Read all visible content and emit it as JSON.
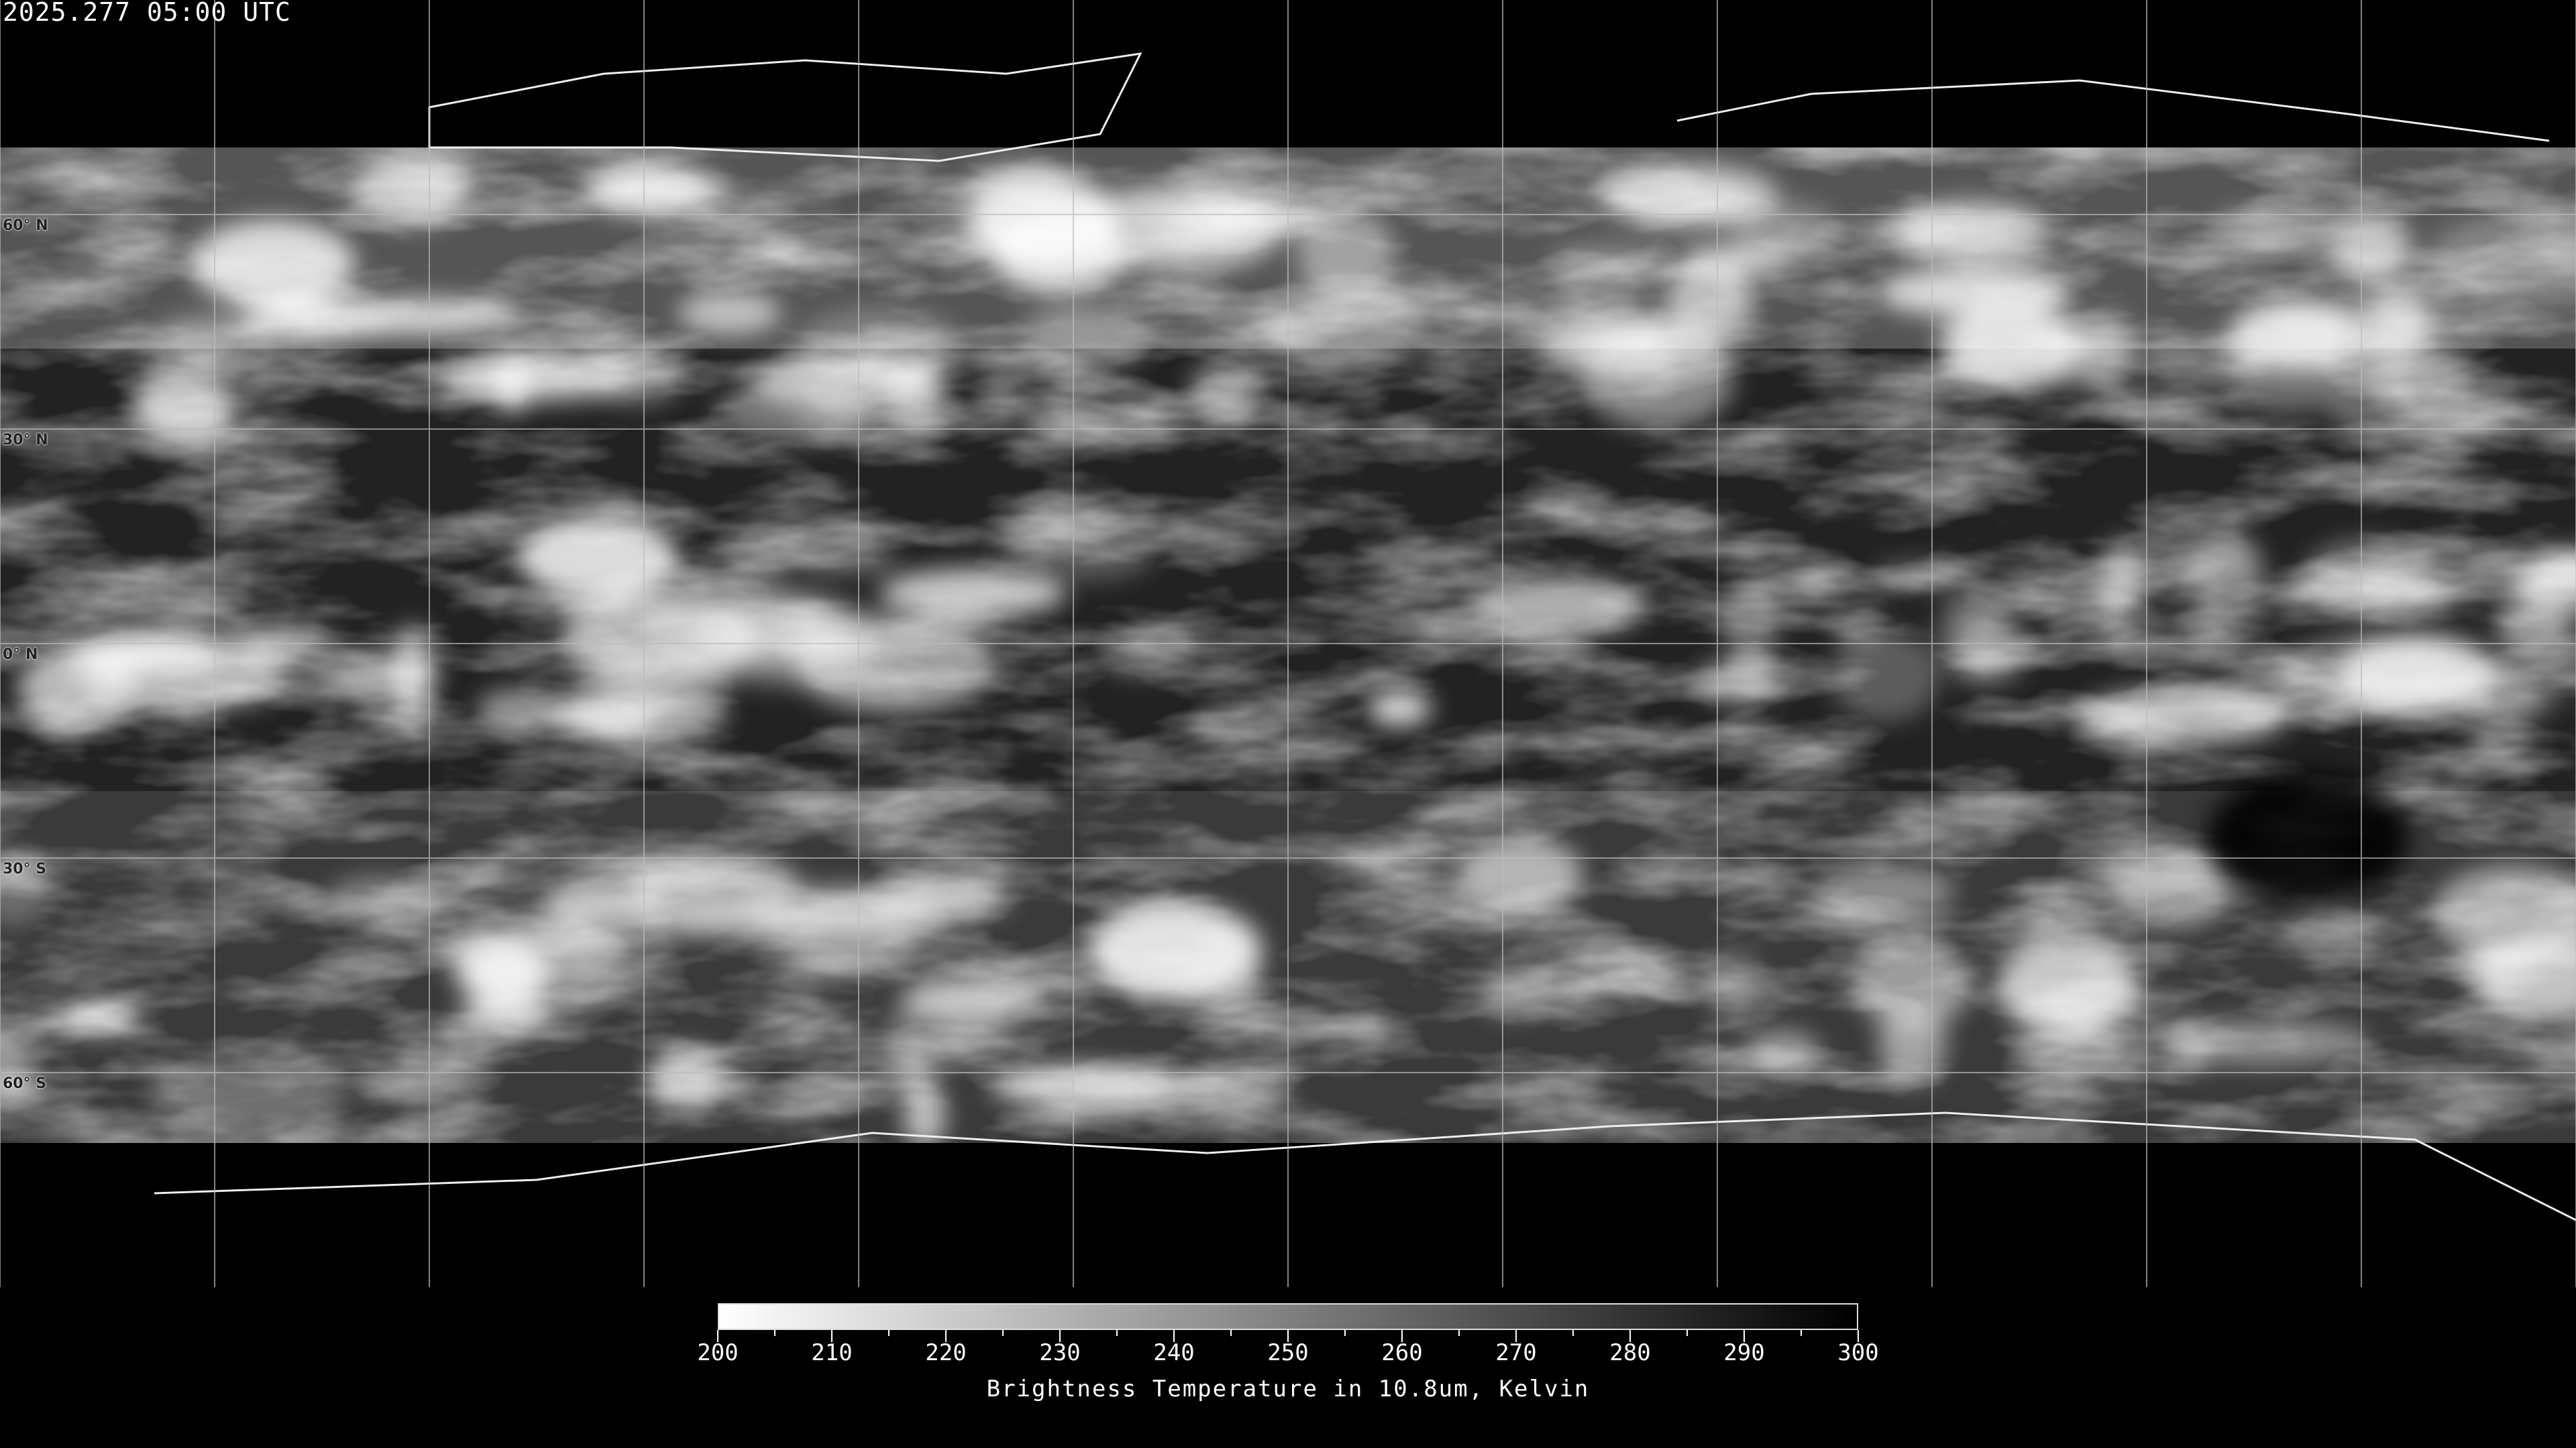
{
  "title": "2025.277 05:00 UTC",
  "map": {
    "projection": "equirectangular",
    "grid": true,
    "lat_labels": [
      "60° N",
      "30° N",
      "0° N",
      "30° S",
      "60° S"
    ],
    "lat_values": [
      60,
      30,
      0,
      -30,
      -60
    ],
    "lon_grid_step_deg": 30
  },
  "colorbar": {
    "min": 200,
    "max": 300,
    "ticks": [
      "200",
      "210",
      "220",
      "230",
      "240",
      "250",
      "260",
      "270",
      "280",
      "290",
      "300"
    ],
    "minor_step": 5,
    "color_low": "#ffffff",
    "color_high": "#000000",
    "label": "Brightness Temperature in 10.8um, Kelvin"
  }
}
